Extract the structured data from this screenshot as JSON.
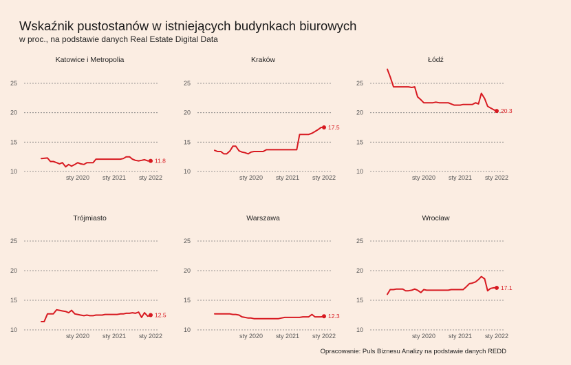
{
  "title": "Wskaźnik pustostanów w istniejących budynkach biurowych",
  "subtitle": "w proc., na podstawie danych Real Estate Digital Data",
  "caption": "Opracowanie: Puls Biznesu Analizy na podstawie danych REDD",
  "colors": {
    "line": "#d71920",
    "background": "#fbede2"
  },
  "chart_data": [
    {
      "type": "line",
      "title": "Katowice i Metropolia",
      "x_tick_labels": [
        "sty 2020",
        "sty 2021",
        "sty 2022"
      ],
      "x_tick_positions": [
        2020,
        2021,
        2022
      ],
      "xlim": [
        2019,
        2022.1
      ],
      "y_tick_labels": [
        "10",
        "15",
        "20",
        "25"
      ],
      "y_ticks": [
        10,
        15,
        20,
        25
      ],
      "ylim": [
        10,
        27
      ],
      "grid": "y-dashed",
      "end_label": "11.8",
      "series": [
        {
          "x": [
            2019.0,
            2019.17,
            2019.25,
            2019.33,
            2019.42,
            2019.5,
            2019.58,
            2019.67,
            2019.75,
            2019.83,
            2019.92,
            2020.0,
            2020.08,
            2020.17,
            2020.25,
            2020.33,
            2020.42,
            2020.5,
            2020.58,
            2020.67,
            2020.75,
            2020.83,
            2020.92,
            2021.0,
            2021.08,
            2021.17,
            2021.25,
            2021.33,
            2021.42,
            2021.5,
            2021.58,
            2021.67,
            2021.75,
            2021.83,
            2021.92,
            2022.0
          ],
          "y": [
            12.2,
            12.3,
            11.7,
            11.7,
            11.5,
            11.3,
            11.5,
            10.8,
            11.2,
            10.9,
            11.2,
            11.5,
            11.3,
            11.2,
            11.5,
            11.5,
            11.5,
            12.1,
            12.1,
            12.1,
            12.1,
            12.1,
            12.1,
            12.1,
            12.1,
            12.1,
            12.2,
            12.5,
            12.5,
            12.1,
            11.9,
            11.8,
            11.9,
            12.0,
            11.8,
            11.8
          ]
        }
      ]
    },
    {
      "type": "line",
      "title": "Kraków",
      "x_tick_labels": [
        "sty 2020",
        "sty 2021",
        "sty 2022"
      ],
      "x_tick_positions": [
        2020,
        2021,
        2022
      ],
      "xlim": [
        2019,
        2022.1
      ],
      "y_tick_labels": [
        "10",
        "15",
        "20",
        "25"
      ],
      "y_ticks": [
        10,
        15,
        20,
        25
      ],
      "ylim": [
        10,
        27
      ],
      "grid": "y-dashed",
      "end_label": "17.5",
      "series": [
        {
          "x": [
            2019.0,
            2019.08,
            2019.17,
            2019.25,
            2019.33,
            2019.42,
            2019.5,
            2019.58,
            2019.67,
            2019.75,
            2019.83,
            2019.92,
            2020.0,
            2020.08,
            2020.17,
            2020.25,
            2020.33,
            2020.42,
            2020.5,
            2020.58,
            2020.67,
            2020.75,
            2020.83,
            2020.92,
            2021.0,
            2021.08,
            2021.17,
            2021.25,
            2021.33,
            2021.42,
            2021.5,
            2021.58,
            2021.67,
            2021.75,
            2021.83,
            2021.92,
            2022.0
          ],
          "y": [
            13.6,
            13.4,
            13.4,
            13.0,
            13.0,
            13.5,
            14.3,
            14.3,
            13.5,
            13.3,
            13.2,
            13.0,
            13.3,
            13.4,
            13.4,
            13.4,
            13.4,
            13.7,
            13.7,
            13.7,
            13.7,
            13.7,
            13.7,
            13.7,
            13.7,
            13.7,
            13.7,
            13.7,
            16.3,
            16.3,
            16.3,
            16.3,
            16.5,
            16.8,
            17.1,
            17.5,
            17.5
          ]
        }
      ]
    },
    {
      "type": "line",
      "title": "Łódź",
      "x_tick_labels": [
        "sty 2020",
        "sty 2021",
        "sty 2022"
      ],
      "x_tick_positions": [
        2020,
        2021,
        2022
      ],
      "xlim": [
        2019,
        2022.1
      ],
      "y_tick_labels": [
        "10",
        "15",
        "20",
        "25"
      ],
      "y_ticks": [
        10,
        15,
        20,
        25
      ],
      "ylim": [
        10,
        27
      ],
      "grid": "y-dashed",
      "end_label": "20.3",
      "series": [
        {
          "x": [
            2019.0,
            2019.08,
            2019.17,
            2019.25,
            2019.33,
            2019.42,
            2019.5,
            2019.58,
            2019.67,
            2019.75,
            2019.83,
            2019.92,
            2020.0,
            2020.08,
            2020.17,
            2020.25,
            2020.33,
            2020.42,
            2020.5,
            2020.58,
            2020.67,
            2020.75,
            2020.83,
            2020.92,
            2021.0,
            2021.08,
            2021.17,
            2021.25,
            2021.33,
            2021.42,
            2021.5,
            2021.58,
            2021.67,
            2021.75,
            2021.83,
            2021.92,
            2022.0
          ],
          "y": [
            27.4,
            26.1,
            24.4,
            24.4,
            24.4,
            24.4,
            24.4,
            24.4,
            24.3,
            24.4,
            22.7,
            22.2,
            21.7,
            21.7,
            21.7,
            21.7,
            21.8,
            21.7,
            21.7,
            21.7,
            21.7,
            21.5,
            21.3,
            21.3,
            21.3,
            21.4,
            21.4,
            21.4,
            21.4,
            21.7,
            21.5,
            23.3,
            22.4,
            21.1,
            20.8,
            20.5,
            20.3
          ]
        }
      ]
    },
    {
      "type": "line",
      "title": "Trójmiasto",
      "x_tick_labels": [
        "sty 2020",
        "sty 2021",
        "sty 2022"
      ],
      "x_tick_positions": [
        2020,
        2021,
        2022
      ],
      "xlim": [
        2019,
        2022.1
      ],
      "y_tick_labels": [
        "10",
        "15",
        "20",
        "25"
      ],
      "y_ticks": [
        10,
        15,
        20,
        25
      ],
      "ylim": [
        10,
        27
      ],
      "grid": "y-dashed",
      "end_label": "12.5",
      "series": [
        {
          "x": [
            2019.0,
            2019.08,
            2019.17,
            2019.25,
            2019.33,
            2019.42,
            2019.5,
            2019.58,
            2019.67,
            2019.75,
            2019.83,
            2019.92,
            2020.0,
            2020.08,
            2020.17,
            2020.25,
            2020.33,
            2020.42,
            2020.5,
            2020.58,
            2020.67,
            2020.75,
            2020.83,
            2020.92,
            2021.0,
            2021.08,
            2021.17,
            2021.25,
            2021.33,
            2021.42,
            2021.5,
            2021.58,
            2021.67,
            2021.75,
            2021.83,
            2021.92,
            2022.0
          ],
          "y": [
            11.4,
            11.4,
            12.7,
            12.7,
            12.7,
            13.4,
            13.3,
            13.2,
            13.1,
            12.9,
            13.3,
            12.7,
            12.6,
            12.5,
            12.4,
            12.5,
            12.4,
            12.4,
            12.5,
            12.5,
            12.5,
            12.6,
            12.6,
            12.6,
            12.6,
            12.6,
            12.7,
            12.7,
            12.8,
            12.8,
            12.9,
            12.8,
            13.0,
            12.1,
            12.9,
            12.3,
            12.5
          ]
        }
      ]
    },
    {
      "type": "line",
      "title": "Warszawa",
      "x_tick_labels": [
        "sty 2020",
        "sty 2021",
        "sty 2022"
      ],
      "x_tick_positions": [
        2020,
        2021,
        2022
      ],
      "xlim": [
        2019,
        2022.1
      ],
      "y_tick_labels": [
        "10",
        "15",
        "20",
        "25"
      ],
      "y_ticks": [
        10,
        15,
        20,
        25
      ],
      "ylim": [
        10,
        27
      ],
      "grid": "y-dashed",
      "end_label": "12.3",
      "series": [
        {
          "x": [
            2019.0,
            2019.08,
            2019.17,
            2019.25,
            2019.33,
            2019.42,
            2019.5,
            2019.58,
            2019.67,
            2019.75,
            2019.83,
            2019.92,
            2020.0,
            2020.08,
            2020.17,
            2020.25,
            2020.33,
            2020.42,
            2020.5,
            2020.58,
            2020.67,
            2020.75,
            2020.83,
            2020.92,
            2021.0,
            2021.08,
            2021.17,
            2021.25,
            2021.33,
            2021.42,
            2021.5,
            2021.58,
            2021.67,
            2021.75,
            2021.83,
            2021.92,
            2022.0
          ],
          "y": [
            12.7,
            12.7,
            12.7,
            12.7,
            12.7,
            12.7,
            12.6,
            12.6,
            12.5,
            12.2,
            12.1,
            12.0,
            12.0,
            11.9,
            11.9,
            11.9,
            11.9,
            11.9,
            11.9,
            11.9,
            11.9,
            11.9,
            12.0,
            12.1,
            12.1,
            12.1,
            12.1,
            12.1,
            12.1,
            12.2,
            12.2,
            12.2,
            12.6,
            12.2,
            12.2,
            12.2,
            12.3
          ]
        }
      ]
    },
    {
      "type": "line",
      "title": "Wrocław",
      "x_tick_labels": [
        "sty 2020",
        "sty 2021",
        "sty 2022"
      ],
      "x_tick_positions": [
        2020,
        2021,
        2022
      ],
      "xlim": [
        2019,
        2022.1
      ],
      "y_tick_labels": [
        "10",
        "15",
        "20",
        "25"
      ],
      "y_ticks": [
        10,
        15,
        20,
        25
      ],
      "ylim": [
        10,
        27
      ],
      "grid": "y-dashed",
      "end_label": "17.1",
      "series": [
        {
          "x": [
            2019.0,
            2019.08,
            2019.17,
            2019.25,
            2019.33,
            2019.42,
            2019.5,
            2019.58,
            2019.67,
            2019.75,
            2019.83,
            2019.92,
            2020.0,
            2020.08,
            2020.17,
            2020.25,
            2020.33,
            2020.42,
            2020.5,
            2020.58,
            2020.67,
            2020.75,
            2020.83,
            2020.92,
            2021.0,
            2021.08,
            2021.17,
            2021.25,
            2021.33,
            2021.42,
            2021.5,
            2021.58,
            2021.67,
            2021.75,
            2021.83,
            2021.92,
            2022.0
          ],
          "y": [
            16.0,
            16.8,
            16.8,
            16.9,
            16.9,
            16.9,
            16.6,
            16.6,
            16.7,
            16.9,
            16.7,
            16.3,
            16.8,
            16.7,
            16.7,
            16.7,
            16.7,
            16.7,
            16.7,
            16.7,
            16.7,
            16.8,
            16.8,
            16.8,
            16.8,
            16.8,
            17.3,
            17.8,
            17.9,
            18.1,
            18.5,
            19.0,
            18.6,
            16.6,
            17.0,
            17.1,
            17.1
          ]
        }
      ]
    }
  ]
}
